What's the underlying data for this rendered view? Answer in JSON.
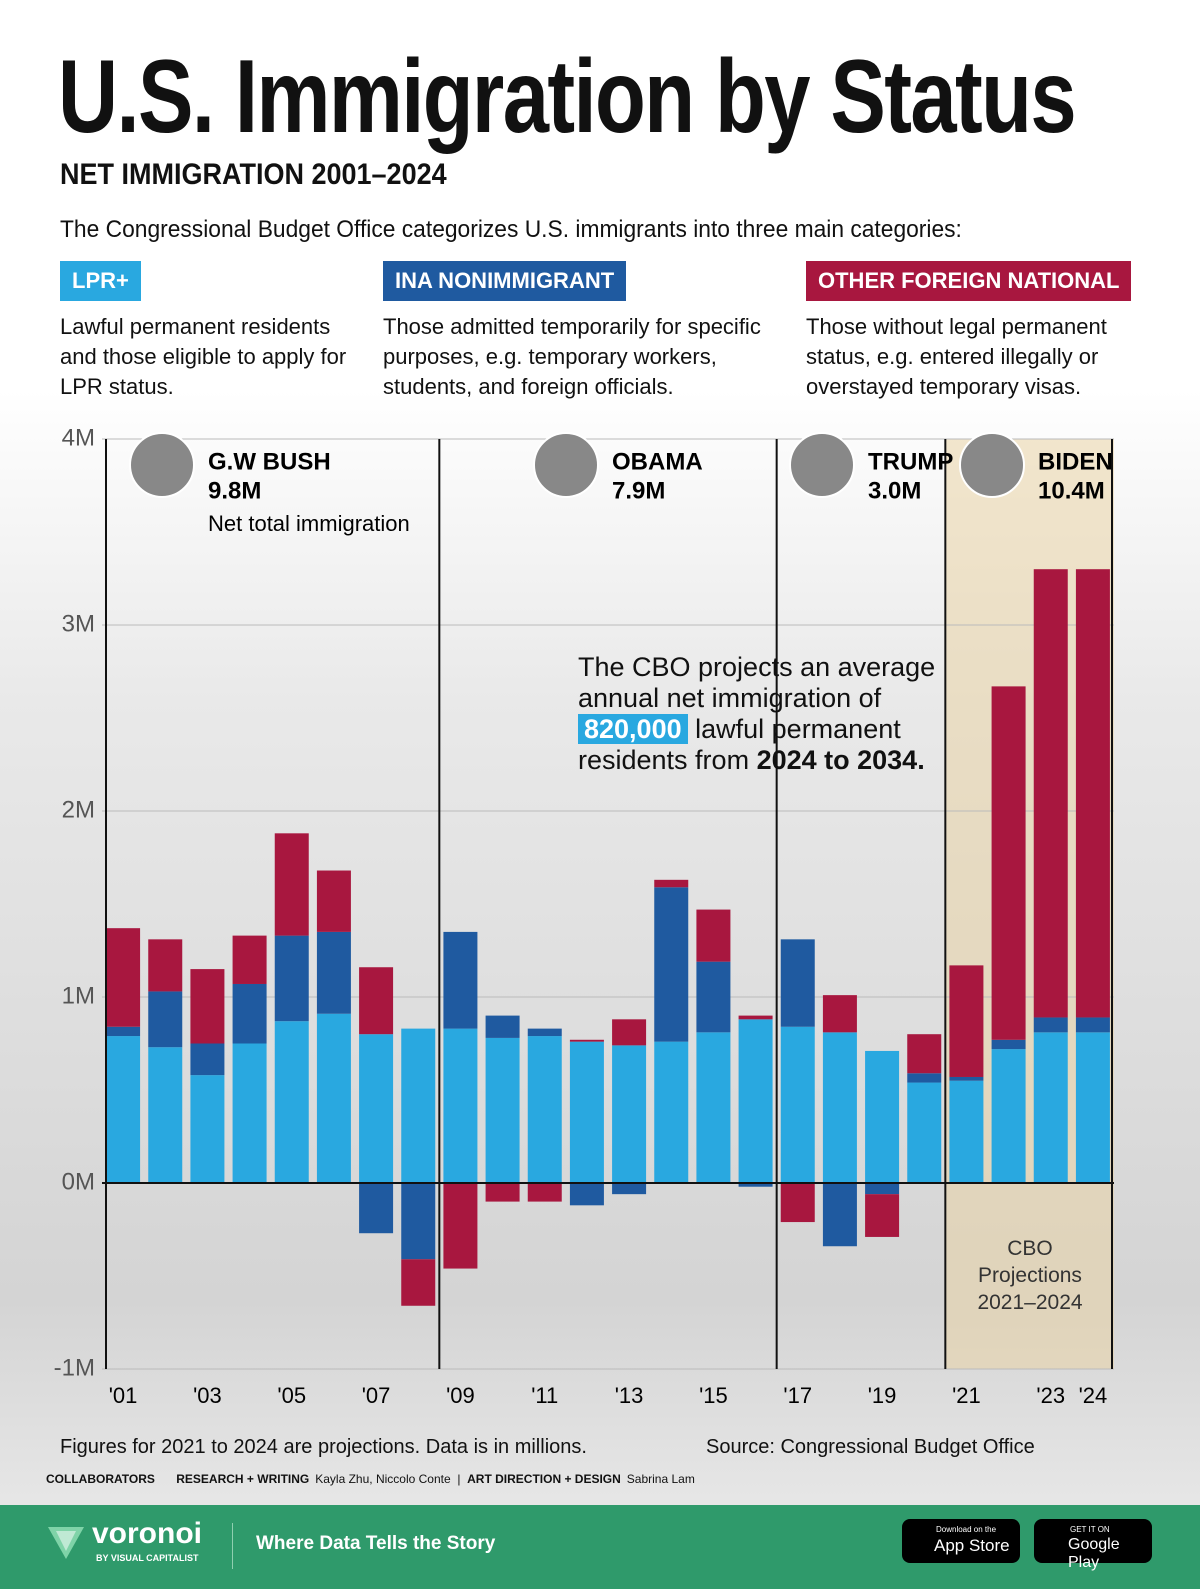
{
  "chart_data": {
    "type": "stacked_bar",
    "title": "U.S. Immigration by Status",
    "subtitle": "NET IMMIGRATION 2001–2024",
    "intro": "The Congressional Budget Office categorizes U.S. immigrants into three main categories:",
    "categories": [
      "'01",
      null,
      "'03",
      null,
      "'05",
      null,
      "'07",
      null,
      "'09",
      null,
      "'11",
      null,
      "'13",
      null,
      "'15",
      null,
      "'17",
      null,
      "'19",
      null,
      "'21",
      null,
      "'23",
      "'24"
    ],
    "series": [
      {
        "name": "LPR+",
        "color": "#29a8e0",
        "description": "Lawful permanent residents and those eligible to apply for LPR status.",
        "values": [
          0.79,
          0.73,
          0.58,
          0.75,
          0.87,
          0.91,
          0.8,
          0.83,
          0.83,
          0.78,
          0.79,
          0.76,
          0.74,
          0.76,
          0.81,
          0.88,
          0.84,
          0.81,
          0.71,
          0.54,
          0.55,
          0.72,
          0.81,
          0.81
        ]
      },
      {
        "name": "INA NONIMMIGRANT",
        "color": "#1f5aa0",
        "description": "Those admitted temporarily for specific purposes, e.g. temporary workers, students, and foreign officials.",
        "values": [
          0.05,
          0.3,
          0.17,
          0.32,
          0.46,
          0.44,
          -0.27,
          -0.41,
          0.52,
          0.12,
          0.04,
          -0.12,
          -0.06,
          0.83,
          0.38,
          -0.02,
          0.47,
          -0.34,
          -0.06,
          0.05,
          0.02,
          0.05,
          0.08,
          0.08
        ]
      },
      {
        "name": "OTHER FOREIGN NATIONAL",
        "color": "#a8173f",
        "description": "Those without legal permanent status, e.g. entered illegally or overstayed temporary visas.",
        "values": [
          0.53,
          0.28,
          0.4,
          0.26,
          0.55,
          0.33,
          0.36,
          -0.25,
          -0.46,
          -0.1,
          -0.1,
          0.01,
          0.14,
          0.04,
          0.28,
          0.02,
          -0.21,
          0.2,
          -0.23,
          0.21,
          0.6,
          1.9,
          2.41,
          2.41
        ]
      }
    ],
    "ylim": [
      -1,
      4
    ],
    "yticks": [
      {
        "value": -1,
        "label": "-1M"
      },
      {
        "value": 0,
        "label": "0M"
      },
      {
        "value": 1,
        "label": "1M"
      },
      {
        "value": 2,
        "label": "2M"
      },
      {
        "value": 3,
        "label": "3M"
      },
      {
        "value": 4,
        "label": "4M"
      }
    ],
    "grid": true,
    "presidents": [
      {
        "name": "G.W BUSH",
        "total": "9.8M",
        "note": "Net total immigration"
      },
      {
        "name": "OBAMA",
        "total": "7.9M"
      },
      {
        "name": "TRUMP",
        "total": "3.0M"
      },
      {
        "name": "BIDEN",
        "total": "10.4M"
      }
    ],
    "callout": {
      "pre": "The CBO projects an average annual net immigration of",
      "highlight": "820,000",
      "mid": "lawful permanent residents from",
      "bold": "2024 to 2034."
    },
    "projection_label": "CBO Projections 2021–2024"
  },
  "footer": {
    "note": "Figures for 2021 to 2024 are projections. Data is in millions.",
    "source": "Source: Congressional Budget Office",
    "collaborators": "COLLABORATORS",
    "research_label": "RESEARCH + WRITING",
    "research": "Kayla Zhu, Niccolo Conte",
    "design_label": "ART DIRECTION + DESIGN",
    "design": "Sabrina Lam",
    "brand": "voronoi",
    "brand_sub": "BY VISUAL CAPITALIST",
    "tagline": "Where Data Tells the Story",
    "appstore_small": "Download on the",
    "appstore": "App Store",
    "play_small": "GET IT ON",
    "play": "Google Play"
  }
}
